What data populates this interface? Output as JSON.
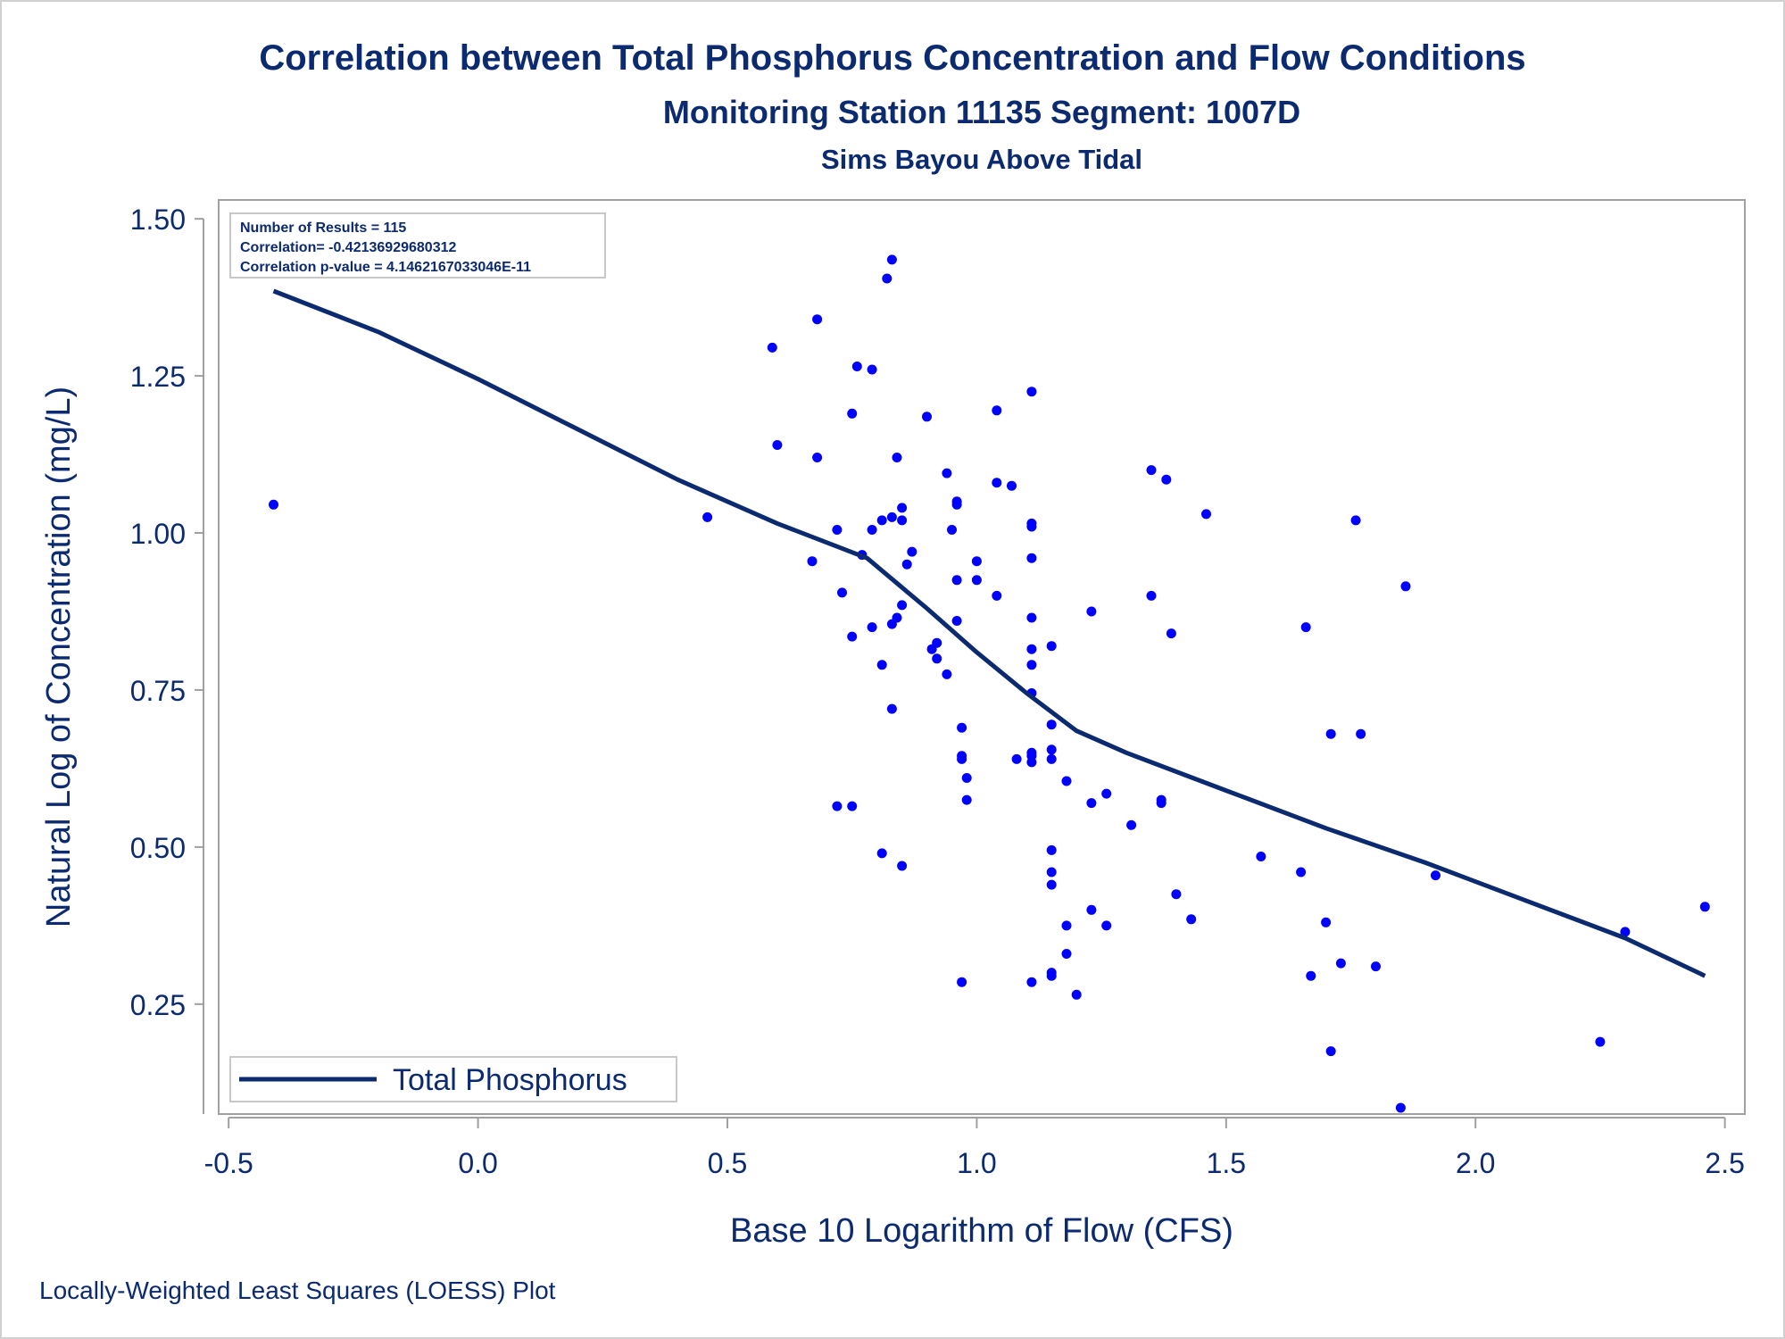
{
  "chart_data": {
    "type": "scatter",
    "title": "Correlation between Total Phosphorus Concentration and Flow Conditions",
    "subtitle": "Monitoring Station 11135 Segment: 1007D",
    "subtitle2": "Sims Bayou Above Tidal",
    "xlabel": "Base 10 Logarithm of Flow (CFS)",
    "ylabel": "Natural Log of Concentration (mg/L)",
    "footnote": "Locally-Weighted Least Squares (LOESS) Plot",
    "xlim": [
      -0.52,
      2.54
    ],
    "ylim": [
      0.075,
      1.53
    ],
    "x_ticks": [
      -0.5,
      0.0,
      0.5,
      1.0,
      1.5,
      2.0,
      2.5
    ],
    "x_tick_labels": [
      "-0.5",
      "0.0",
      "0.5",
      "1.0",
      "1.5",
      "2.0",
      "2.5"
    ],
    "y_ticks": [
      0.25,
      0.5,
      0.75,
      1.0,
      1.25,
      1.5
    ],
    "y_tick_labels": [
      "0.25",
      "0.50",
      "0.75",
      "1.00",
      "1.25",
      "1.50"
    ],
    "grid": false,
    "legend_position": "bottom-left",
    "stats": [
      "Number of Results = 115",
      "Correlation= -0.42136929680312",
      "Correlation p-value = 4.1462167033046E-11"
    ],
    "colors": {
      "points": "#0000ff",
      "line": "#0b2a6f",
      "text": "#0b2a6f",
      "frame": "#a0a0a0"
    },
    "series": [
      {
        "name": "Total Phosphorus",
        "type": "line",
        "x": [
          -0.41,
          -0.2,
          0.0,
          0.2,
          0.4,
          0.6,
          0.78,
          0.9,
          1.0,
          1.1,
          1.2,
          1.3,
          1.5,
          1.7,
          1.9,
          2.1,
          2.3,
          2.46
        ],
        "y": [
          1.385,
          1.32,
          1.245,
          1.165,
          1.085,
          1.015,
          0.96,
          0.88,
          0.81,
          0.745,
          0.685,
          0.65,
          0.59,
          0.53,
          0.475,
          0.415,
          0.355,
          0.295
        ]
      },
      {
        "name": "",
        "type": "scatter",
        "points": [
          [
            -0.41,
            1.045
          ],
          [
            0.46,
            1.025
          ],
          [
            0.59,
            1.295
          ],
          [
            0.6,
            1.14
          ],
          [
            0.67,
            0.955
          ],
          [
            0.68,
            1.34
          ],
          [
            0.68,
            1.12
          ],
          [
            0.72,
            1.005
          ],
          [
            0.73,
            0.905
          ],
          [
            0.72,
            0.565
          ],
          [
            0.75,
            1.19
          ],
          [
            0.75,
            0.835
          ],
          [
            0.75,
            0.565
          ],
          [
            0.76,
            1.265
          ],
          [
            0.77,
            0.965
          ],
          [
            0.79,
            1.26
          ],
          [
            0.79,
            1.005
          ],
          [
            0.79,
            0.85
          ],
          [
            0.81,
            1.02
          ],
          [
            0.81,
            0.79
          ],
          [
            0.81,
            0.49
          ],
          [
            0.82,
            1.405
          ],
          [
            0.83,
            1.435
          ],
          [
            0.83,
            1.025
          ],
          [
            0.83,
            0.855
          ],
          [
            0.83,
            0.72
          ],
          [
            0.84,
            1.12
          ],
          [
            0.84,
            0.865
          ],
          [
            0.85,
            1.04
          ],
          [
            0.85,
            1.02
          ],
          [
            0.85,
            0.885
          ],
          [
            0.85,
            0.47
          ],
          [
            0.86,
            0.95
          ],
          [
            0.87,
            0.97
          ],
          [
            0.9,
            1.185
          ],
          [
            0.91,
            0.815
          ],
          [
            0.92,
            0.825
          ],
          [
            0.92,
            0.8
          ],
          [
            0.94,
            1.095
          ],
          [
            0.94,
            0.775
          ],
          [
            0.95,
            1.005
          ],
          [
            0.96,
            1.05
          ],
          [
            0.96,
            1.045
          ],
          [
            0.96,
            0.925
          ],
          [
            0.96,
            0.86
          ],
          [
            0.97,
            0.69
          ],
          [
            0.97,
            0.645
          ],
          [
            0.97,
            0.64
          ],
          [
            0.97,
            0.285
          ],
          [
            0.98,
            0.61
          ],
          [
            0.98,
            0.575
          ],
          [
            1.0,
            0.955
          ],
          [
            1.0,
            0.925
          ],
          [
            1.04,
            1.195
          ],
          [
            1.04,
            1.08
          ],
          [
            1.04,
            0.9
          ],
          [
            1.07,
            1.075
          ],
          [
            1.08,
            0.64
          ],
          [
            1.11,
            1.225
          ],
          [
            1.11,
            1.015
          ],
          [
            1.11,
            1.01
          ],
          [
            1.11,
            0.96
          ],
          [
            1.11,
            0.865
          ],
          [
            1.11,
            0.815
          ],
          [
            1.11,
            0.79
          ],
          [
            1.11,
            0.745
          ],
          [
            1.11,
            0.65
          ],
          [
            1.11,
            0.645
          ],
          [
            1.11,
            0.635
          ],
          [
            1.11,
            0.285
          ],
          [
            1.15,
            0.82
          ],
          [
            1.15,
            0.695
          ],
          [
            1.15,
            0.655
          ],
          [
            1.15,
            0.64
          ],
          [
            1.15,
            0.495
          ],
          [
            1.15,
            0.46
          ],
          [
            1.15,
            0.44
          ],
          [
            1.15,
            0.3
          ],
          [
            1.15,
            0.295
          ],
          [
            1.18,
            0.605
          ],
          [
            1.18,
            0.375
          ],
          [
            1.18,
            0.33
          ],
          [
            1.2,
            0.265
          ],
          [
            1.23,
            0.875
          ],
          [
            1.23,
            0.57
          ],
          [
            1.23,
            0.4
          ],
          [
            1.26,
            0.585
          ],
          [
            1.26,
            0.375
          ],
          [
            1.31,
            0.535
          ],
          [
            1.35,
            1.1
          ],
          [
            1.35,
            0.9
          ],
          [
            1.37,
            0.575
          ],
          [
            1.37,
            0.57
          ],
          [
            1.38,
            1.085
          ],
          [
            1.39,
            0.84
          ],
          [
            1.4,
            0.425
          ],
          [
            1.43,
            0.385
          ],
          [
            1.46,
            1.03
          ],
          [
            1.57,
            0.485
          ],
          [
            1.65,
            0.46
          ],
          [
            1.66,
            0.85
          ],
          [
            1.67,
            0.295
          ],
          [
            1.7,
            0.38
          ],
          [
            1.71,
            0.68
          ],
          [
            1.71,
            0.175
          ],
          [
            1.73,
            0.315
          ],
          [
            1.76,
            1.02
          ],
          [
            1.77,
            0.68
          ],
          [
            1.8,
            0.31
          ],
          [
            1.85,
            0.085
          ],
          [
            1.86,
            0.915
          ],
          [
            1.92,
            0.455
          ],
          [
            2.25,
            0.19
          ],
          [
            2.3,
            0.365
          ],
          [
            2.46,
            0.405
          ]
        ]
      }
    ]
  }
}
